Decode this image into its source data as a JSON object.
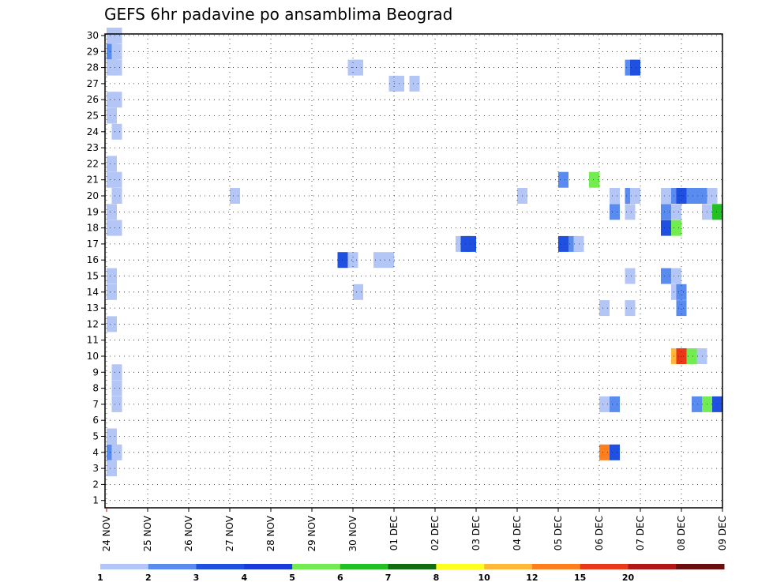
{
  "chart_data": {
    "type": "heatmap",
    "title": "GEFS 6hr padavine po ansamblima Beograd",
    "x_labels": [
      "24 NOV",
      "25 NOV",
      "26 NOV",
      "27 NOV",
      "28 NOV",
      "29 NOV",
      "30 NOV",
      "01 DEC",
      "02 DEC",
      "03 DEC",
      "04 DEC",
      "05 DEC",
      "06 DEC",
      "07 DEC",
      "08 DEC",
      "09 DEC"
    ],
    "y_labels": [
      "1",
      "2",
      "3",
      "4",
      "5",
      "6",
      "7",
      "8",
      "9",
      "10",
      "11",
      "12",
      "13",
      "14",
      "15",
      "16",
      "17",
      "18",
      "19",
      "20",
      "21",
      "22",
      "23",
      "24",
      "25",
      "26",
      "27",
      "28",
      "29",
      "30"
    ],
    "xlim": [
      0,
      15
    ],
    "ylim": [
      0.5,
      30.5
    ],
    "grid": true,
    "colorbar": {
      "ticks": [
        "1",
        "2",
        "3",
        "4",
        "5",
        "6",
        "7",
        "8",
        "10",
        "12",
        "15",
        "20"
      ],
      "colors": [
        "#b3c6f5",
        "#5a8cef",
        "#2050e0",
        "#1a3adc",
        "#72ec50",
        "#22c022",
        "#126c12",
        "#ffff22",
        "#ffb83a",
        "#ff7e1e",
        "#e83a1a",
        "#b01818",
        "#6c0e0e"
      ]
    },
    "cells": [
      {
        "t": 0.125,
        "m": 30,
        "v": 1
      },
      {
        "t": 0.25,
        "m": 30,
        "v": 1
      },
      {
        "t": 0.125,
        "m": 29,
        "v": 2
      },
      {
        "t": 0.25,
        "m": 29,
        "v": 1
      },
      {
        "t": 0.125,
        "m": 28,
        "v": 1
      },
      {
        "t": 0.25,
        "m": 28,
        "v": 1
      },
      {
        "t": 6.0,
        "m": 28,
        "v": 1
      },
      {
        "t": 6.125,
        "m": 28,
        "v": 1
      },
      {
        "t": 12.75,
        "m": 28,
        "v": 2
      },
      {
        "t": 12.875,
        "m": 28,
        "v": 3
      },
      {
        "t": 7.0,
        "m": 27,
        "v": 1
      },
      {
        "t": 7.125,
        "m": 27,
        "v": 1
      },
      {
        "t": 7.5,
        "m": 27,
        "v": 1
      },
      {
        "t": 0.125,
        "m": 26,
        "v": 1
      },
      {
        "t": 0.25,
        "m": 26,
        "v": 1
      },
      {
        "t": 0.125,
        "m": 25,
        "v": 1
      },
      {
        "t": 0.25,
        "m": 24,
        "v": 1
      },
      {
        "t": 0.125,
        "m": 22,
        "v": 1
      },
      {
        "t": 0.125,
        "m": 21,
        "v": 1
      },
      {
        "t": 0.25,
        "m": 21,
        "v": 1
      },
      {
        "t": 11.125,
        "m": 21,
        "v": 2
      },
      {
        "t": 11.875,
        "m": 21,
        "v": 5
      },
      {
        "t": 0.25,
        "m": 20,
        "v": 1
      },
      {
        "t": 3.125,
        "m": 20,
        "v": 1
      },
      {
        "t": 10.125,
        "m": 20,
        "v": 1
      },
      {
        "t": 12.375,
        "m": 20,
        "v": 1
      },
      {
        "t": 12.75,
        "m": 20,
        "v": 2
      },
      {
        "t": 12.875,
        "m": 20,
        "v": 1
      },
      {
        "t": 13.625,
        "m": 20,
        "v": 1
      },
      {
        "t": 13.875,
        "m": 20,
        "v": 2
      },
      {
        "t": 14.0,
        "m": 20,
        "v": 3
      },
      {
        "t": 14.25,
        "m": 20,
        "v": 2
      },
      {
        "t": 14.5,
        "m": 20,
        "v": 2
      },
      {
        "t": 14.75,
        "m": 20,
        "v": 1
      },
      {
        "t": 0.125,
        "m": 19,
        "v": 1
      },
      {
        "t": 12.375,
        "m": 19,
        "v": 2
      },
      {
        "t": 12.75,
        "m": 19,
        "v": 1
      },
      {
        "t": 13.625,
        "m": 19,
        "v": 2
      },
      {
        "t": 13.875,
        "m": 19,
        "v": 1
      },
      {
        "t": 14.625,
        "m": 19,
        "v": 1
      },
      {
        "t": 14.875,
        "m": 19,
        "v": 6
      },
      {
        "t": 0.125,
        "m": 18,
        "v": 1
      },
      {
        "t": 0.25,
        "m": 18,
        "v": 1
      },
      {
        "t": 13.625,
        "m": 18,
        "v": 3
      },
      {
        "t": 13.875,
        "m": 18,
        "v": 5
      },
      {
        "t": 8.625,
        "m": 17,
        "v": 1
      },
      {
        "t": 8.75,
        "m": 17,
        "v": 3
      },
      {
        "t": 8.875,
        "m": 17,
        "v": 3
      },
      {
        "t": 11.125,
        "m": 17,
        "v": 3
      },
      {
        "t": 11.375,
        "m": 17,
        "v": 2
      },
      {
        "t": 11.5,
        "m": 17,
        "v": 1
      },
      {
        "t": 5.75,
        "m": 16,
        "v": 3
      },
      {
        "t": 6.0,
        "m": 16,
        "v": 1
      },
      {
        "t": 6.625,
        "m": 16,
        "v": 1
      },
      {
        "t": 6.875,
        "m": 16,
        "v": 1
      },
      {
        "t": 0.125,
        "m": 15,
        "v": 1
      },
      {
        "t": 12.75,
        "m": 15,
        "v": 1
      },
      {
        "t": 13.625,
        "m": 15,
        "v": 2
      },
      {
        "t": 13.875,
        "m": 15,
        "v": 1
      },
      {
        "t": 0.125,
        "m": 14,
        "v": 1
      },
      {
        "t": 6.125,
        "m": 14,
        "v": 1
      },
      {
        "t": 13.875,
        "m": 14,
        "v": 1
      },
      {
        "t": 14.0,
        "m": 14,
        "v": 2
      },
      {
        "t": 12.125,
        "m": 13,
        "v": 1
      },
      {
        "t": 12.75,
        "m": 13,
        "v": 1
      },
      {
        "t": 14.0,
        "m": 13,
        "v": 2
      },
      {
        "t": 0.125,
        "m": 12,
        "v": 1
      },
      {
        "t": 13.875,
        "m": 10,
        "v": 10
      },
      {
        "t": 14.0,
        "m": 10,
        "v": 15
      },
      {
        "t": 14.25,
        "m": 10,
        "v": 5
      },
      {
        "t": 14.5,
        "m": 10,
        "v": 1
      },
      {
        "t": 0.25,
        "m": 9,
        "v": 1
      },
      {
        "t": 0.25,
        "m": 8,
        "v": 1
      },
      {
        "t": 0.25,
        "m": 7,
        "v": 1
      },
      {
        "t": 12.125,
        "m": 7,
        "v": 1
      },
      {
        "t": 12.375,
        "m": 7,
        "v": 2
      },
      {
        "t": 14.375,
        "m": 7,
        "v": 2
      },
      {
        "t": 14.625,
        "m": 7,
        "v": 5
      },
      {
        "t": 14.875,
        "m": 7,
        "v": 3
      },
      {
        "t": 0.125,
        "m": 5,
        "v": 1
      },
      {
        "t": 0.125,
        "m": 4,
        "v": 2
      },
      {
        "t": 0.25,
        "m": 4,
        "v": 1
      },
      {
        "t": 12.125,
        "m": 4,
        "v": 12
      },
      {
        "t": 12.375,
        "m": 4,
        "v": 3
      },
      {
        "t": 0.125,
        "m": 3,
        "v": 1
      }
    ]
  }
}
